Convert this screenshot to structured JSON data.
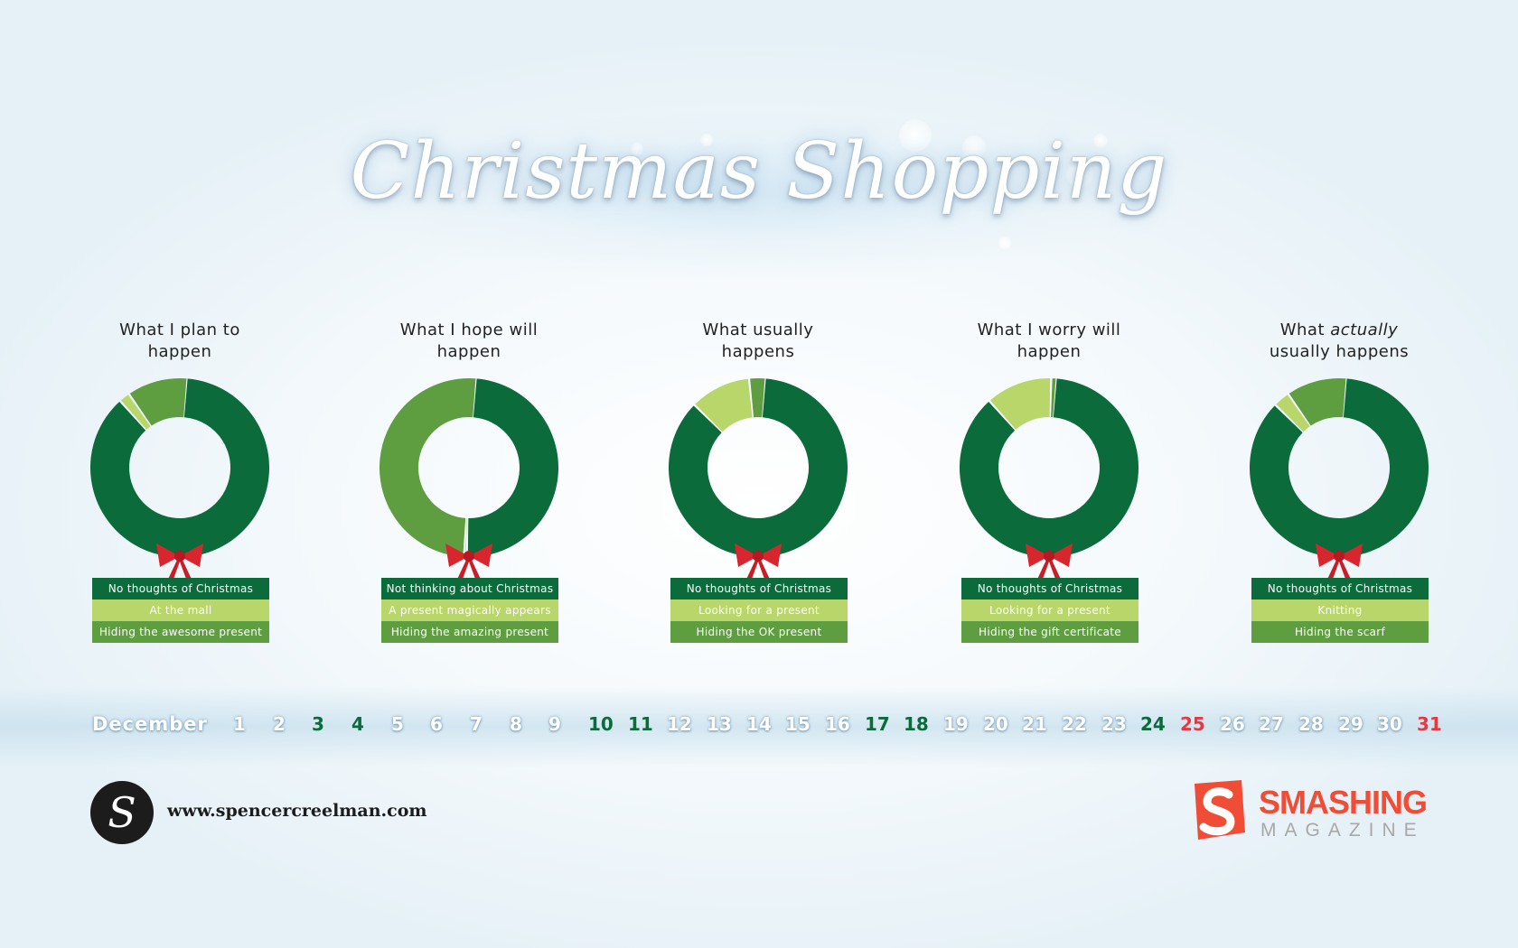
{
  "title": "Christmas Shopping",
  "colors": {
    "dark": "#0b6b3a",
    "mid": "#5e9e41",
    "light": "#b9d66b",
    "bow": "#d8262f",
    "accent_red": "#e23a44"
  },
  "chart_data": [
    {
      "type": "pie",
      "title": "What I plan to happen",
      "labels": [
        "No thoughts of Christmas",
        "At the mall",
        "Hiding the awesome present"
      ],
      "values": [
        87,
        2,
        11
      ]
    },
    {
      "type": "pie",
      "title": "What I hope will happen",
      "labels": [
        "Not thinking about Christmas",
        "A present magically appears",
        "Hiding the amazing present"
      ],
      "values": [
        49,
        0.5,
        50.5
      ]
    },
    {
      "type": "pie",
      "title": "What usually happens",
      "labels": [
        "No thoughts of Christmas",
        "Looking for a present",
        "Hiding the OK present"
      ],
      "values": [
        86,
        11,
        3
      ]
    },
    {
      "type": "pie",
      "title": "What I worry will happen",
      "labels": [
        "No thoughts of Christmas",
        "Looking for a present",
        "Hiding the gift certificate"
      ],
      "values": [
        87,
        12,
        1
      ]
    },
    {
      "type": "pie",
      "title_parts": [
        "What ",
        "actually",
        " usually happens"
      ],
      "labels": [
        "No thoughts of Christmas",
        "Knitting",
        "Hiding the scarf"
      ],
      "values": [
        86,
        3,
        11
      ]
    }
  ],
  "calendar": {
    "month": "December",
    "days": [
      "1",
      "2",
      "3",
      "4",
      "5",
      "6",
      "7",
      "8",
      "9",
      "10",
      "11",
      "12",
      "13",
      "14",
      "15",
      "16",
      "17",
      "18",
      "19",
      "20",
      "21",
      "22",
      "23",
      "24",
      "25",
      "26",
      "27",
      "28",
      "29",
      "30",
      "31"
    ],
    "green_days": [
      "3",
      "4",
      "10",
      "11",
      "17",
      "18",
      "24"
    ],
    "red_days": [
      "25",
      "31"
    ]
  },
  "author": {
    "logo_letter": "S",
    "url": "www.spencercreelman.com"
  },
  "sponsor": {
    "name": "SMASHING",
    "subtitle": "MAGAZINE"
  }
}
